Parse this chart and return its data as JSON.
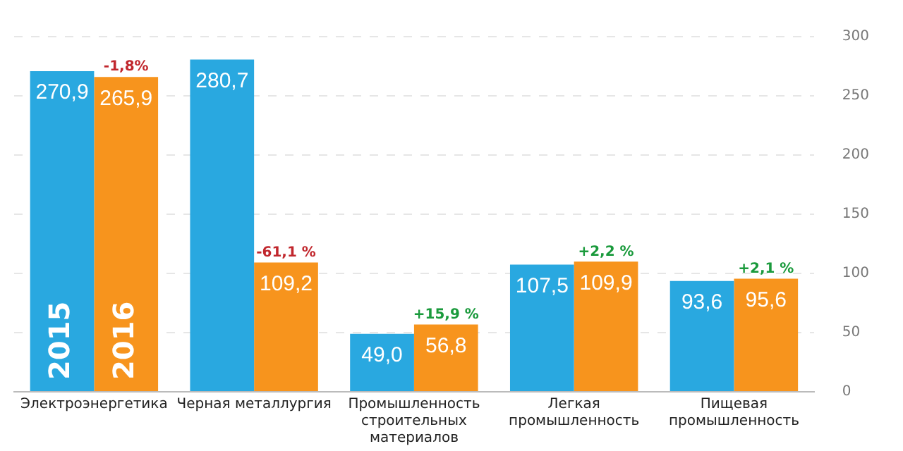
{
  "chart_data": {
    "type": "bar",
    "categories": [
      "Электроэнергетика",
      "Черная металлургия",
      "Промышленность строительных материалов",
      "Легкая промышленность",
      "Пищевая промышленность"
    ],
    "series": [
      {
        "name": "2015",
        "color": "#29a8e0",
        "values": [
          270.9,
          280.7,
          49.0,
          107.5,
          93.6
        ],
        "value_labels": [
          "270,9",
          "280,7",
          "49,0",
          "107,5",
          "93,6"
        ]
      },
      {
        "name": "2016",
        "color": "#f7941d",
        "values": [
          265.9,
          109.2,
          56.8,
          109.9,
          95.6
        ],
        "value_labels": [
          "265,9",
          "109,2",
          "56,8",
          "109,9",
          "95,6"
        ]
      }
    ],
    "ylim": [
      0,
      300
    ],
    "yticks": [
      0,
      50,
      100,
      150,
      200,
      250,
      300
    ],
    "grid": "y",
    "legend": false,
    "annotations": [
      {
        "text": "-1,8%",
        "x": "Электроэнергетика",
        "y": 265.9
      },
      {
        "text": "-61,1 %",
        "x": "Черная металлургия",
        "y": 109.2
      },
      {
        "text": "+15,9 %",
        "x": "Промышленность строительных материалов",
        "y": 56.8
      },
      {
        "text": "+2,2 %",
        "x": "Легкая промышленность",
        "y": 109.9
      },
      {
        "text": "+2,1 %",
        "x": "Пищевая промышленность",
        "y": 95.6
      }
    ]
  }
}
